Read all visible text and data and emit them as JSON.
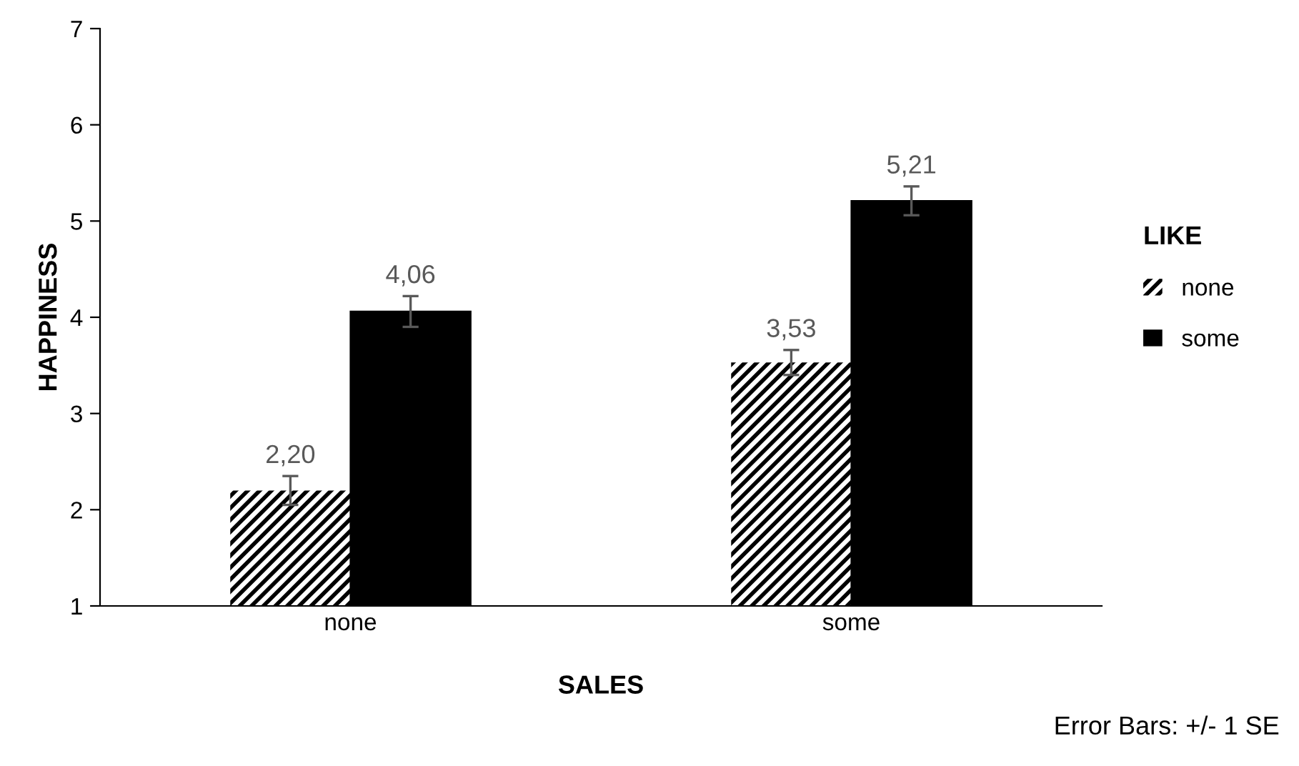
{
  "chart_data": {
    "type": "bar",
    "xlabel": "SALES",
    "ylabel": "HAPPINESS",
    "legend_title": "LIKE",
    "categories": [
      "none",
      "some"
    ],
    "series": [
      {
        "name": "none",
        "color": "#000000",
        "values": [
          2.2,
          3.53
        ],
        "errors": [
          0.15,
          0.13
        ],
        "value_labels": [
          "2,20",
          "3,53"
        ]
      },
      {
        "name": "some",
        "color": "#000000",
        "values": [
          4.06,
          5.21
        ],
        "errors": [
          0.16,
          0.15
        ],
        "value_labels": [
          "4,06",
          "5,21"
        ]
      }
    ],
    "ylim": [
      1,
      7
    ],
    "yticks": [
      1,
      2,
      3,
      4,
      5,
      6,
      7
    ],
    "grid": false,
    "legend": "right",
    "annotations": [
      "Error Bars: +/- 1 SE"
    ]
  }
}
